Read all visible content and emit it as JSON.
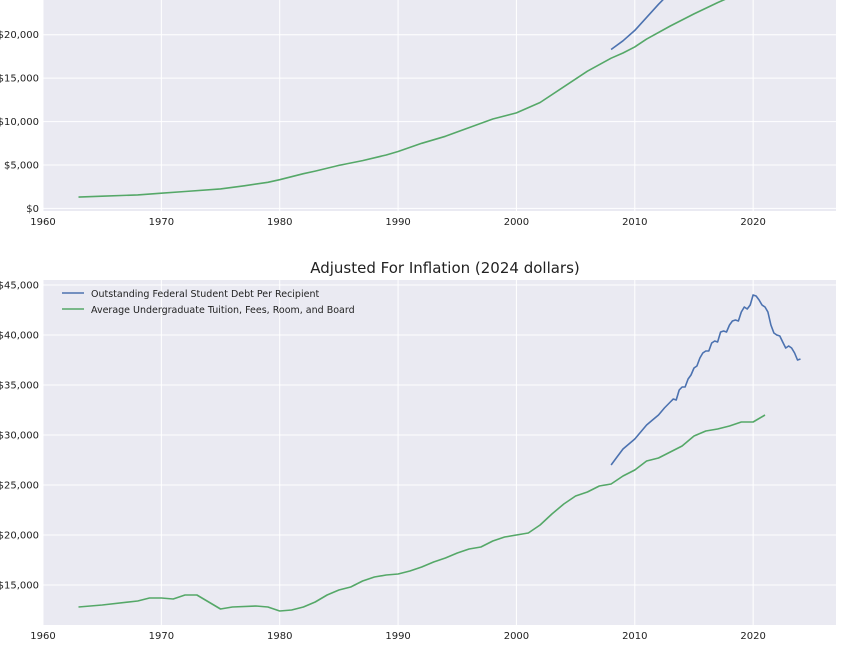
{
  "colors": {
    "debt": "#4c72b0",
    "tuition": "#55a868",
    "plot_bg": "#eaeaf2",
    "grid": "#ffffff"
  },
  "chart_data": [
    {
      "type": "line",
      "title": "",
      "xlabel": "",
      "ylabel": "",
      "xlim": [
        1960,
        2027
      ],
      "ylim": [
        -300,
        24000
      ],
      "grid": true,
      "x_ticks": [
        "1960",
        "1970",
        "1980",
        "1990",
        "2000",
        "2010",
        "2020"
      ],
      "x_tick_values": [
        1960,
        1970,
        1980,
        1990,
        2000,
        2010,
        2020
      ],
      "y_ticks": [
        "$0",
        "$5,000",
        "$10,000",
        "$15,000",
        "$20,000"
      ],
      "y_tick_values": [
        0,
        5000,
        10000,
        15000,
        20000
      ],
      "series": [
        {
          "key": "debt",
          "color": "#4c72b0",
          "x": [
            2008,
            2009,
            2010,
            2011,
            2012,
            2012.5
          ],
          "y": [
            18300,
            19300,
            20500,
            22000,
            23500,
            24200
          ]
        },
        {
          "key": "tuition",
          "color": "#55a868",
          "x": [
            1963,
            1965,
            1968,
            1970,
            1972,
            1975,
            1977,
            1979,
            1980,
            1982,
            1983,
            1985,
            1987,
            1989,
            1990,
            1992,
            1994,
            1996,
            1998,
            2000,
            2002,
            2004,
            2006,
            2008,
            2009,
            2010,
            2011,
            2013,
            2015,
            2017,
            2018
          ],
          "y": [
            1300,
            1400,
            1550,
            1750,
            1950,
            2250,
            2600,
            3000,
            3300,
            4000,
            4300,
            4950,
            5500,
            6150,
            6550,
            7500,
            8300,
            9300,
            10300,
            11000,
            12200,
            14000,
            15800,
            17300,
            17900,
            18600,
            19500,
            21000,
            22400,
            23700,
            24300
          ]
        }
      ]
    },
    {
      "type": "line",
      "title": "Adjusted For Inflation (2024 dollars)",
      "xlabel": "",
      "ylabel": "",
      "xlim": [
        1960,
        2027
      ],
      "ylim": [
        11000,
        45500
      ],
      "grid": true,
      "legend_placement": "top-left",
      "x_ticks": [
        "1960",
        "1970",
        "1980",
        "1990",
        "2000",
        "2010",
        "2020"
      ],
      "x_tick_values": [
        1960,
        1970,
        1980,
        1990,
        2000,
        2010,
        2020
      ],
      "y_ticks": [
        "$15,000",
        "$20,000",
        "$25,000",
        "$30,000",
        "$35,000",
        "$40,000",
        "$45,000"
      ],
      "y_tick_values": [
        15000,
        20000,
        25000,
        30000,
        35000,
        40000,
        45000
      ],
      "series": [
        {
          "key": "debt",
          "color": "#4c72b0",
          "name": "Outstanding Federal Student Debt Per Recipient",
          "x": [
            2008,
            2008.5,
            2009,
            2009.5,
            2010,
            2010.5,
            2011,
            2011.5,
            2012,
            2012.5,
            2013,
            2013.25,
            2013.5,
            2013.75,
            2014,
            2014.25,
            2014.5,
            2014.75,
            2015,
            2015.25,
            2015.5,
            2015.75,
            2016,
            2016.25,
            2016.5,
            2016.75,
            2017,
            2017.25,
            2017.5,
            2017.75,
            2018,
            2018.25,
            2018.5,
            2018.75,
            2019,
            2019.25,
            2019.5,
            2019.75,
            2020,
            2020.25,
            2020.5,
            2020.75,
            2021,
            2021.25,
            2021.5,
            2021.75,
            2022,
            2022.25,
            2022.5,
            2022.75,
            2023,
            2023.25,
            2023.5,
            2023.75,
            2024
          ],
          "y": [
            27000,
            27800,
            28600,
            29100,
            29600,
            30300,
            31000,
            31500,
            32000,
            32700,
            33300,
            33600,
            33500,
            34500,
            34800,
            34800,
            35600,
            36000,
            36700,
            36900,
            37700,
            38200,
            38400,
            38400,
            39200,
            39400,
            39300,
            40300,
            40400,
            40300,
            41000,
            41400,
            41500,
            41400,
            42300,
            42800,
            42600,
            43000,
            44000,
            43900,
            43500,
            43000,
            42800,
            42300,
            41000,
            40200,
            40000,
            39900,
            39300,
            38700,
            38900,
            38700,
            38200,
            37500,
            37600
          ]
        },
        {
          "key": "tuition",
          "color": "#55a868",
          "name": "Average Undergraduate Tuition, Fees, Room, and Board",
          "x": [
            1963,
            1965,
            1968,
            1969,
            1970,
            1971,
            1972,
            1973,
            1974,
            1975,
            1976,
            1978,
            1979,
            1980,
            1981,
            1982,
            1983,
            1984,
            1985,
            1986,
            1987,
            1988,
            1989,
            1990,
            1991,
            1992,
            1993,
            1994,
            1995,
            1996,
            1997,
            1998,
            1999,
            2000,
            2001,
            2002,
            2003,
            2004,
            2005,
            2006,
            2007,
            2008,
            2009,
            2010,
            2011,
            2012,
            2013,
            2014,
            2015,
            2016,
            2017,
            2018,
            2019,
            2020,
            2021
          ],
          "y": [
            12800,
            13000,
            13400,
            13700,
            13700,
            13600,
            14000,
            14000,
            13300,
            12600,
            12800,
            12900,
            12800,
            12400,
            12500,
            12800,
            13300,
            14000,
            14500,
            14800,
            15400,
            15800,
            16000,
            16100,
            16400,
            16800,
            17300,
            17700,
            18200,
            18600,
            18800,
            19400,
            19800,
            20000,
            20200,
            21000,
            22100,
            23100,
            23900,
            24300,
            24900,
            25100,
            25900,
            26500,
            27400,
            27700,
            28300,
            28900,
            29900,
            30400,
            30600,
            30900,
            31300,
            31300,
            32000
          ]
        }
      ]
    }
  ]
}
